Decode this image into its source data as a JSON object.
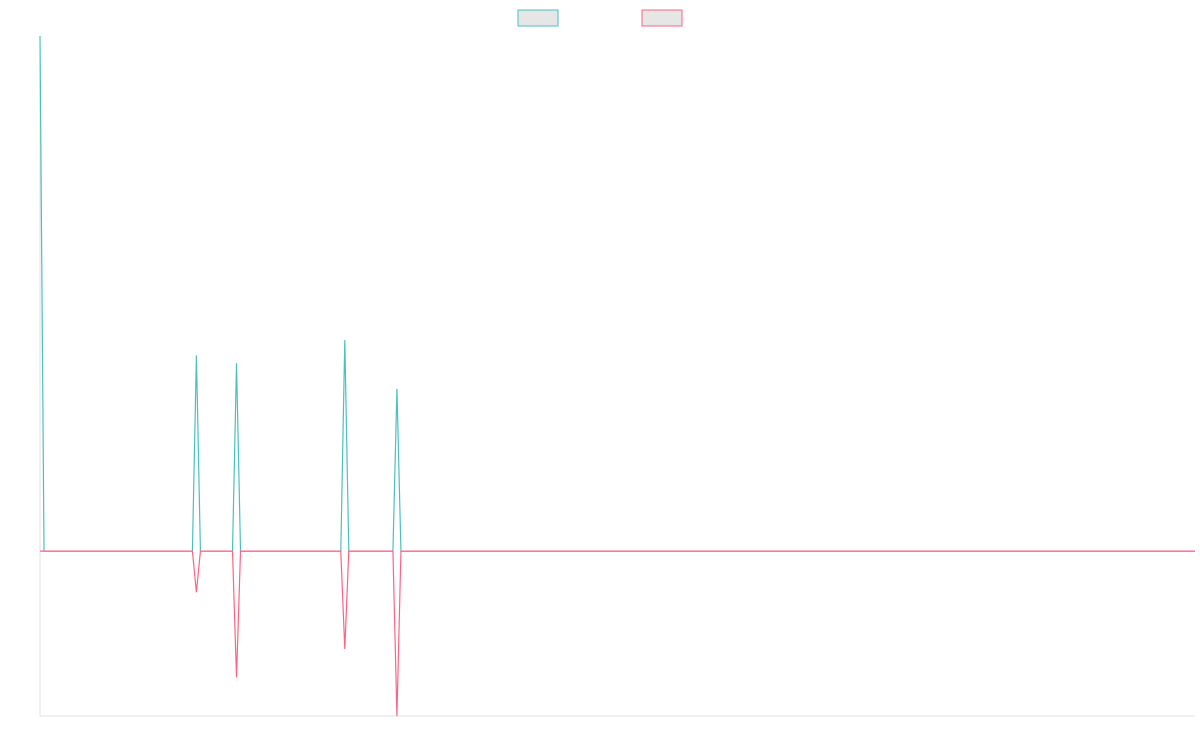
{
  "chart_data": {
    "type": "line",
    "x": [
      0,
      1,
      38,
      39,
      40,
      48,
      49,
      50,
      75,
      76,
      77,
      88,
      89,
      90,
      288
    ],
    "xlim": [
      0,
      288
    ],
    "ylim": [
      -32,
      100
    ],
    "legend": "top",
    "series": [
      {
        "color": "#4bc0c0",
        "values": [
          100,
          0,
          0,
          38,
          0,
          0,
          36.5,
          0,
          0,
          41,
          0,
          0,
          31.5,
          0,
          0
        ]
      },
      {
        "color": "#ff6384",
        "values": [
          0,
          0,
          0,
          -8,
          0,
          0,
          -24.5,
          0,
          0,
          -19,
          0,
          0,
          -32,
          0,
          0
        ]
      }
    ]
  }
}
